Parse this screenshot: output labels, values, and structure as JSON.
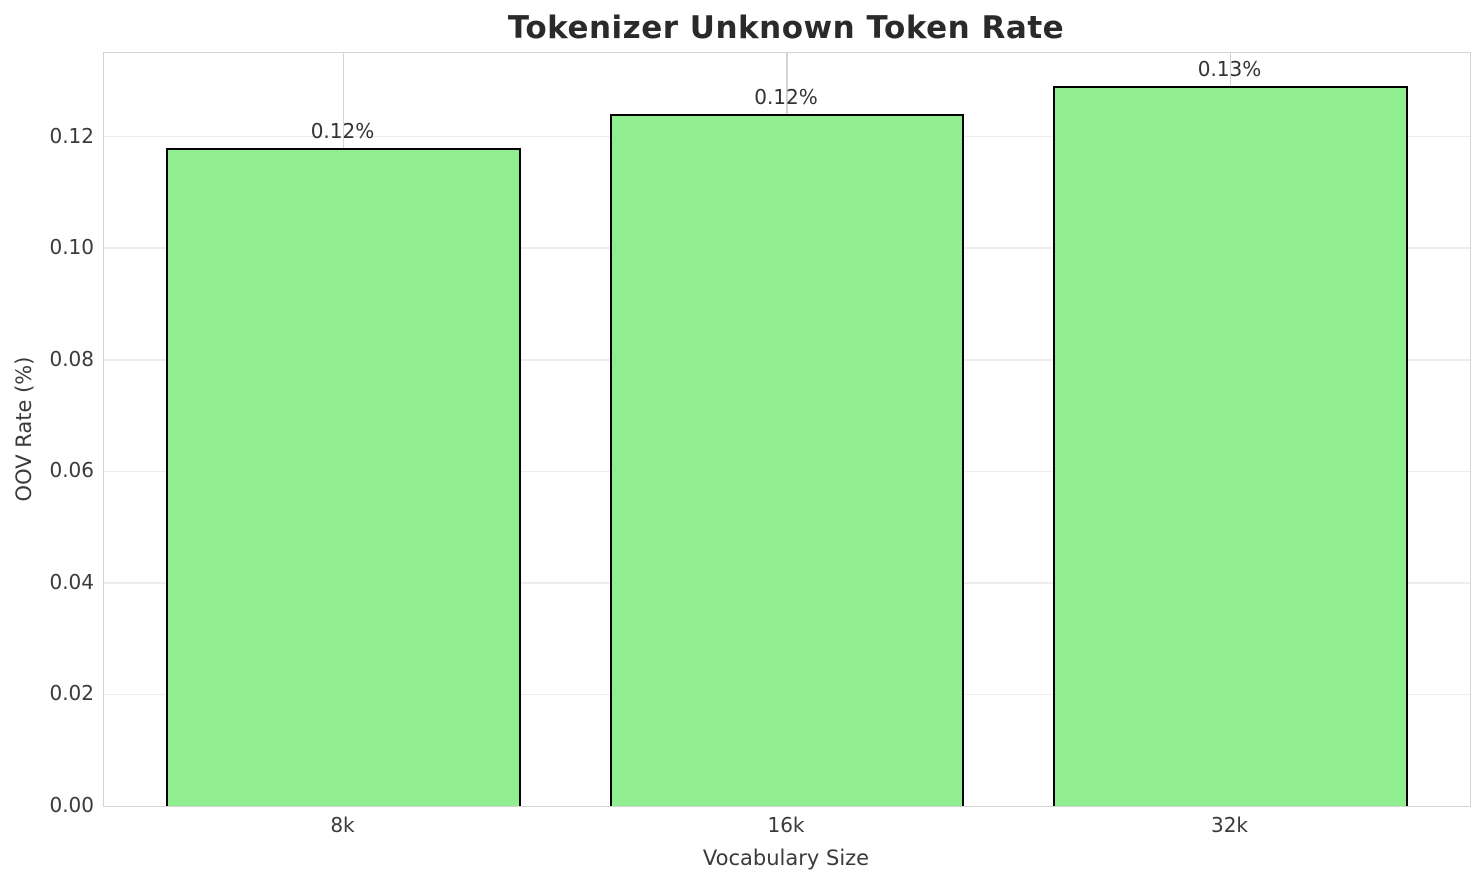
{
  "chart_data": {
    "type": "bar",
    "title": "Tokenizer Unknown Token Rate",
    "xlabel": "Vocabulary Size",
    "ylabel": "OOV Rate (%)",
    "categories": [
      "8k",
      "16k",
      "32k"
    ],
    "values": [
      0.118,
      0.124,
      0.129
    ],
    "bar_labels": [
      "0.12%",
      "0.12%",
      "0.13%"
    ],
    "ylim": [
      0,
      0.135
    ],
    "ytick_labels": [
      "0.00",
      "0.02",
      "0.04",
      "0.06",
      "0.08",
      "0.10",
      "0.12"
    ],
    "grid": true,
    "legend_position": "none",
    "bar_color": "#90EE90",
    "bar_edge_color": "#000000",
    "ygrid_color": "#ededed",
    "xgrid_color": "#d4d4d4",
    "spine_color": "#d4d4d4",
    "tick_text_color": "#3b3b3b",
    "title_color": "#2a2a2a",
    "background_color": "#ffffff"
  }
}
